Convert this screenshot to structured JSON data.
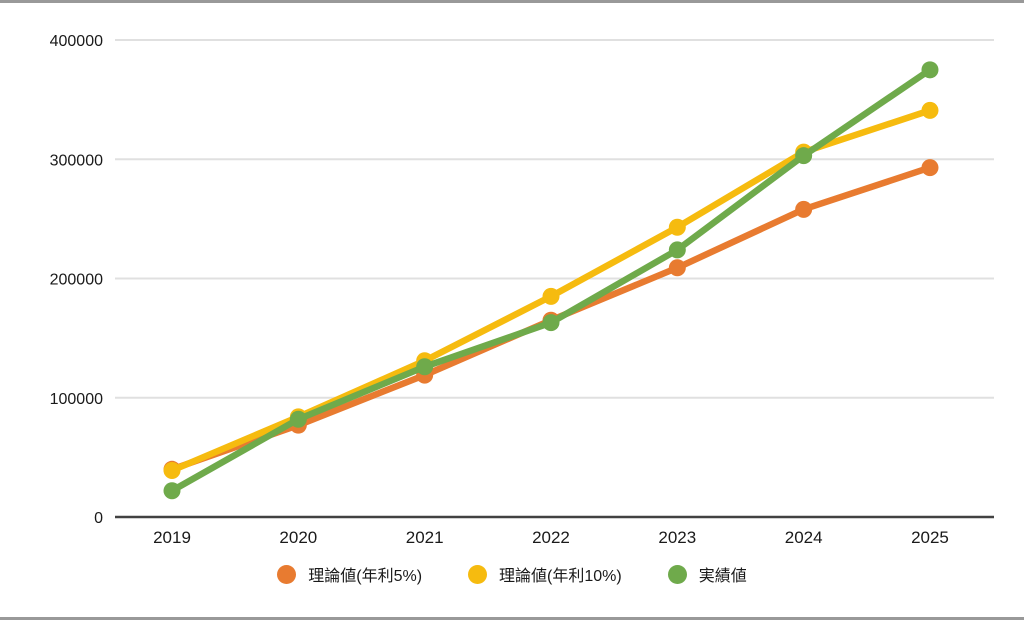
{
  "chart_data": {
    "type": "line",
    "categories": [
      "2019",
      "2020",
      "2021",
      "2022",
      "2023",
      "2024",
      "2025"
    ],
    "series": [
      {
        "name": "理論値(年利5%)",
        "color": "#E87B30",
        "values": [
          40000,
          77000,
          119000,
          165000,
          209000,
          258000,
          293000
        ]
      },
      {
        "name": "理論値(年利10%)",
        "color": "#F6BB0F",
        "values": [
          39000,
          84000,
          131000,
          185000,
          243000,
          306000,
          341000
        ]
      },
      {
        "name": "実績値",
        "color": "#6FAA4B",
        "values": [
          22000,
          82000,
          126000,
          163000,
          224000,
          303000,
          375000
        ]
      }
    ],
    "title": "",
    "xlabel": "",
    "ylabel": "",
    "ylim": [
      0,
      400000
    ],
    "yticks": [
      0,
      100000,
      200000,
      300000,
      400000
    ],
    "grid": true,
    "legend_position": "bottom",
    "marker": "circle"
  },
  "colors": {
    "grid": "#E0E0E0",
    "axis": "#424242",
    "tick_text": "#1A1A1A",
    "border": "#999999",
    "background": "#FFFFFF"
  }
}
